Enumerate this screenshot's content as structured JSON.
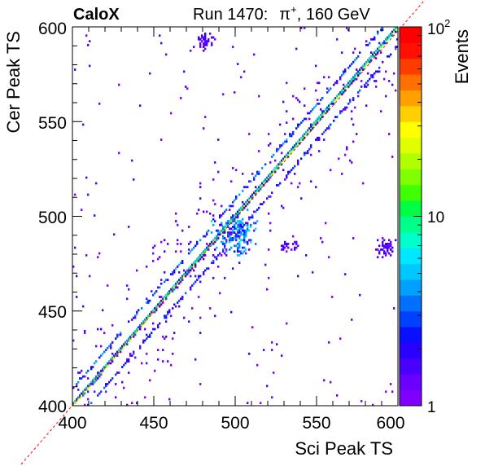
{
  "header": {
    "experiment": "CaloX",
    "run": "Run 1470:",
    "beam_particle": "π",
    "beam_charge": "+",
    "beam_energy": ", 160 GeV"
  },
  "colors": {
    "frame": "#000000",
    "diagonal_line": "#ff0000",
    "palette": [
      "#7f00ff",
      "#6a00ff",
      "#4a00ff",
      "#2a00ff",
      "#0a10ff",
      "#0040ff",
      "#0070ff",
      "#00a0ff",
      "#00c8ff",
      "#00e8ff",
      "#00ffcc",
      "#00ff88",
      "#00ff44",
      "#40ff00",
      "#80ff00",
      "#b0ff00",
      "#e0ff00",
      "#ffff00",
      "#ffd000",
      "#ffa000",
      "#ff7000",
      "#ff3c00",
      "#ff1000",
      "#ff0000"
    ]
  },
  "chart_data": {
    "type": "heatmap",
    "xlabel": "Sci Peak TS",
    "ylabel": "Cer Peak TS",
    "xlim": [
      400,
      600
    ],
    "ylim": [
      400,
      600
    ],
    "x_ticks": [
      "400",
      "450",
      "500",
      "550",
      "600"
    ],
    "y_ticks": [
      "400",
      "450",
      "500",
      "550",
      "600"
    ],
    "z_title": "Events",
    "z_scale": "log",
    "zlim": [
      1,
      100
    ],
    "z_ticks": [
      "1",
      "10",
      "10"
    ],
    "z_tick_top_exponent": "2",
    "grid": false,
    "reference_line": "y = x",
    "bands": [
      {
        "description": "main diagonal",
        "y_minus_x": 0,
        "peak_events": 20
      },
      {
        "description": "upper side band",
        "y_minus_x": 9,
        "peak_events": 4
      },
      {
        "description": "lower side band",
        "y_minus_x": -10,
        "peak_events": 3
      }
    ],
    "clusters": [
      {
        "x_center": 500,
        "y_center": 490,
        "x_spread": 12,
        "y_spread": 10,
        "peak_events": 5
      },
      {
        "x_center": 480,
        "y_center": 592,
        "x_spread": 7,
        "y_spread": 4,
        "peak_events": 1
      },
      {
        "x_center": 592,
        "y_center": 483,
        "x_spread": 6,
        "y_spread": 5,
        "peak_events": 1
      },
      {
        "x_center": 533,
        "y_center": 484,
        "x_spread": 5,
        "y_spread": 3,
        "peak_events": 1
      }
    ]
  }
}
